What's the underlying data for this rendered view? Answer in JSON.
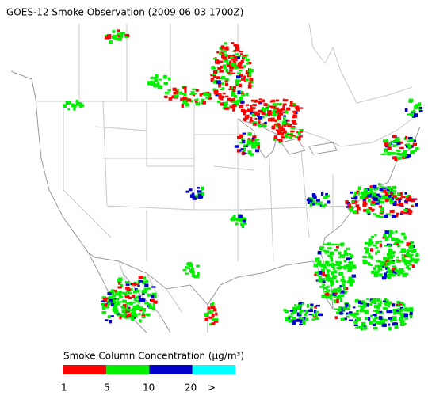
{
  "title": "GOES-12 Smoke Observation (2009 06 03  1700Z)",
  "legend": {
    "title": "Smoke Column Concentration (μg/m³)",
    "colors": [
      "#ff0000",
      "#00ee00",
      "#0000cc",
      "#00ffff"
    ],
    "labels": [
      "1",
      "5",
      "10",
      "20",
      ">"
    ]
  }
}
